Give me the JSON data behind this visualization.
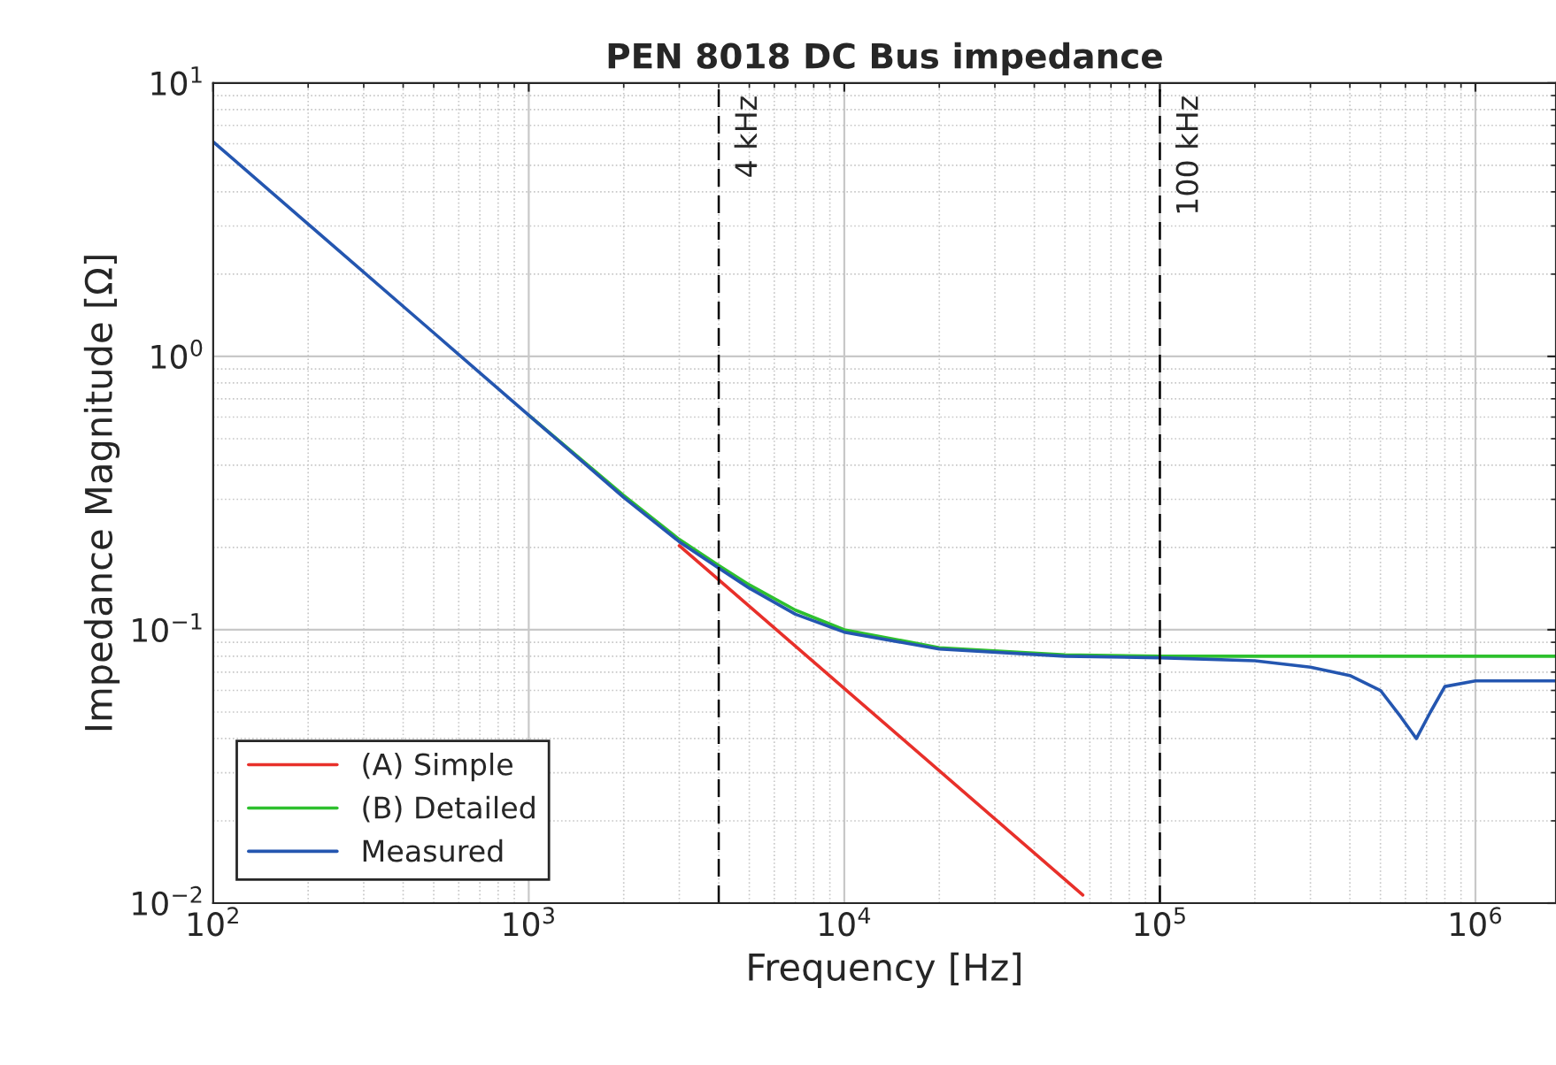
{
  "chart_data": {
    "type": "line",
    "title": "PEN 8018 DC Bus impedance",
    "xlabel": "Frequency [Hz]",
    "ylabel": "Impedance Magnitude [Ω]",
    "log": "xy",
    "xlim": [
      100,
      1800000
    ],
    "ylim": [
      0.01,
      10
    ],
    "xticks": [
      {
        "value": 100,
        "label": "10$^{2}$"
      },
      {
        "value": 1000,
        "label": "10$^{3}$"
      },
      {
        "value": 10000,
        "label": "10$^{4}$"
      },
      {
        "value": 100000,
        "label": "10$^{5}$"
      },
      {
        "value": 1000000,
        "label": "10$^{6}$"
      }
    ],
    "yticks": [
      {
        "value": 0.01,
        "label": "10$^{−2}$"
      },
      {
        "value": 0.1,
        "label": "10$^{−1}$"
      },
      {
        "value": 1,
        "label": "10$^{0}$"
      },
      {
        "value": 10,
        "label": "10$^{1}$"
      }
    ],
    "grid": true,
    "legend": "bottom left",
    "line_style": "solid",
    "marker": "none",
    "ref_lines": [
      {
        "axis": "x",
        "value": 4000,
        "label": "4 kHz",
        "color": "#000000",
        "line_style": "dashed"
      },
      {
        "axis": "x",
        "value": 100000,
        "label": "100 kHz",
        "color": "#000000",
        "line_style": "dashed"
      }
    ],
    "series": [
      {
        "name": "(A) Simple",
        "color": "#e8302a",
        "x": [
          3000,
          10000,
          57000
        ],
        "values": [
          0.203,
          0.061,
          0.0107
        ]
      },
      {
        "name": "(B) Detailed",
        "color": "#2ec02e",
        "x": [
          1000,
          2000,
          3000,
          4000,
          5000,
          7000,
          10000,
          20000,
          50000,
          100000,
          1000000,
          1800000
        ],
        "values": [
          0.61,
          0.31,
          0.214,
          0.172,
          0.146,
          0.118,
          0.1,
          0.086,
          0.081,
          0.08,
          0.08,
          0.08
        ]
      },
      {
        "name": "Measured",
        "color": "#2456b0",
        "x": [
          100,
          200,
          500,
          1000,
          2000,
          3000,
          4000,
          5000,
          7000,
          10000,
          20000,
          50000,
          100000,
          200000,
          300000,
          400000,
          500000,
          580000,
          650000,
          720000,
          800000,
          1000000,
          1800000
        ],
        "values": [
          6.1,
          3.05,
          1.22,
          0.61,
          0.305,
          0.21,
          0.168,
          0.142,
          0.114,
          0.098,
          0.085,
          0.08,
          0.079,
          0.077,
          0.073,
          0.068,
          0.06,
          0.048,
          0.04,
          0.05,
          0.062,
          0.065,
          0.065
        ]
      }
    ]
  }
}
